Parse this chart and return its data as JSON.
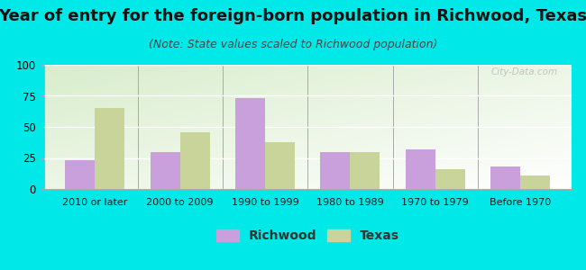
{
  "title": "Year of entry for the foreign-born population in Richwood, Texas",
  "subtitle": "(Note: State values scaled to Richwood population)",
  "categories": [
    "2010 or later",
    "2000 to 2009",
    "1990 to 1999",
    "1980 to 1989",
    "1970 to 1979",
    "Before 1970"
  ],
  "richwood_values": [
    23,
    30,
    73,
    30,
    32,
    18
  ],
  "texas_values": [
    65,
    46,
    38,
    30,
    16,
    11
  ],
  "richwood_color": "#c9a0dc",
  "texas_color": "#c8d49a",
  "background_color": "#00e8e8",
  "ylim": [
    0,
    100
  ],
  "yticks": [
    0,
    25,
    50,
    75,
    100
  ],
  "title_fontsize": 13,
  "subtitle_fontsize": 9,
  "legend_fontsize": 10,
  "bar_width": 0.35
}
